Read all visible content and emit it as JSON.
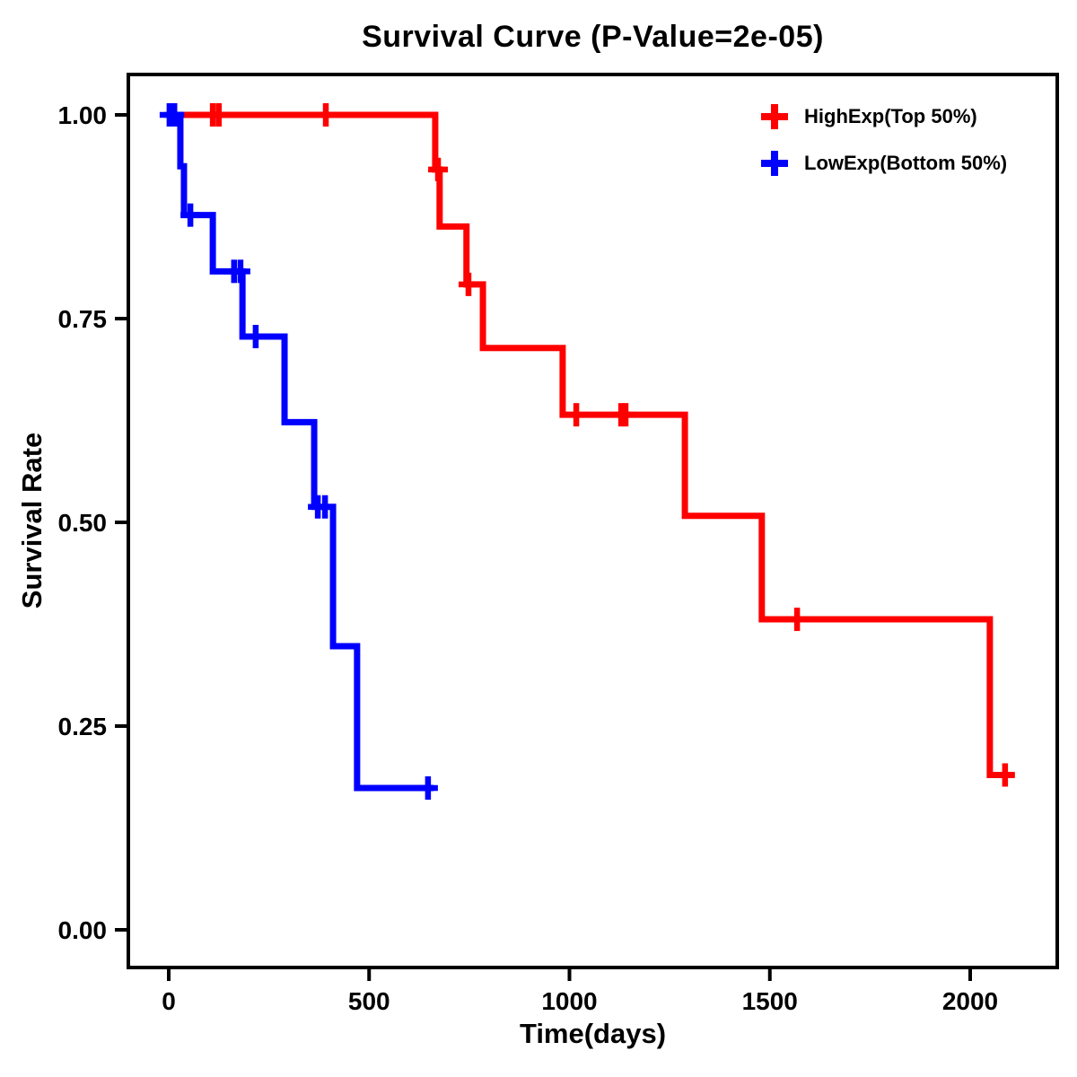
{
  "chart_data": {
    "type": "line",
    "subtype": "kaplan-meier-step-curve",
    "title": "Survival Curve (P-Value=2e-05)",
    "xlabel": "Time(days)",
    "ylabel": "Survival Rate",
    "x_ticks": [
      0,
      500,
      1000,
      1500,
      2000
    ],
    "y_ticks": [
      1.0,
      0.75,
      0.5,
      0.25,
      0.0
    ],
    "xlim": [
      -100,
      2215
    ],
    "ylim": [
      -0.046,
      1.048
    ],
    "grid": false,
    "legend_position": "top-right",
    "censor_marker": "plus",
    "series": [
      {
        "name": "HighExp(Top 50%)",
        "color": "#FF0000",
        "steps": [
          [
            0,
            1.0
          ],
          [
            665,
            0.933
          ],
          [
            676,
            0.863
          ],
          [
            743,
            0.792
          ],
          [
            784,
            0.714
          ],
          [
            983,
            0.632
          ],
          [
            1288,
            0.508
          ],
          [
            1480,
            0.381
          ],
          [
            2049,
            0.19
          ]
        ],
        "end_time": 2110,
        "censors": [
          [
            110,
            1.0
          ],
          [
            125,
            1.0
          ],
          [
            392,
            1.0
          ],
          [
            672,
            0.933
          ],
          [
            748,
            0.792
          ],
          [
            1017,
            0.632
          ],
          [
            1129,
            0.632
          ],
          [
            1140,
            0.632
          ],
          [
            1568,
            0.381
          ],
          [
            2087,
            0.19
          ]
        ]
      },
      {
        "name": "LowExp(Bottom 50%)",
        "color": "#0000FF",
        "steps": [
          [
            0,
            1.0
          ],
          [
            29,
            0.937
          ],
          [
            38,
            0.877
          ],
          [
            110,
            0.808
          ],
          [
            184,
            0.728
          ],
          [
            289,
            0.623
          ],
          [
            363,
            0.519
          ],
          [
            410,
            0.348
          ],
          [
            470,
            0.174
          ]
        ],
        "end_time": 661,
        "censors": [
          [
            2,
            1.0
          ],
          [
            14,
            1.0
          ],
          [
            54,
            0.877
          ],
          [
            163,
            0.808
          ],
          [
            179,
            0.808
          ],
          [
            217,
            0.728
          ],
          [
            372,
            0.519
          ],
          [
            390,
            0.519
          ],
          [
            647,
            0.174
          ]
        ]
      }
    ]
  }
}
